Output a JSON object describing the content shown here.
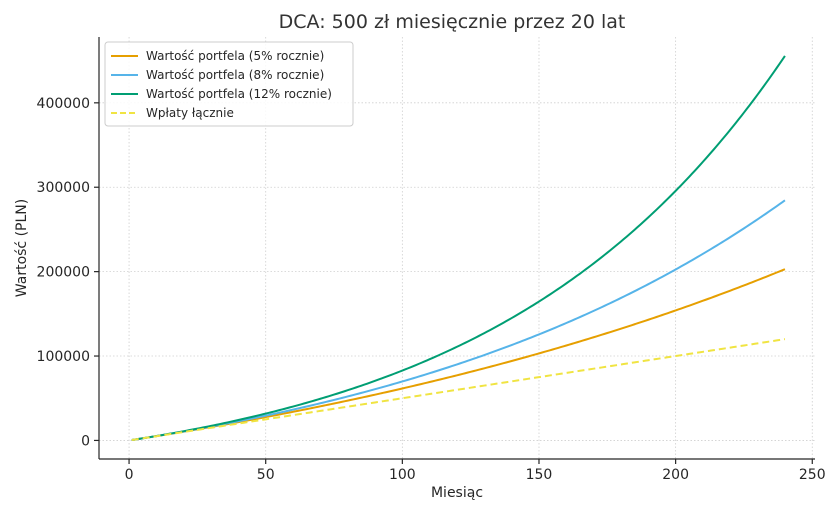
{
  "chart_data": {
    "type": "line",
    "title": "DCA: 500 zł miesięcznie przez 20 lat",
    "xlabel": "Miesiąc",
    "ylabel": "Wartość (PLN)",
    "xlim": [
      -11,
      251
    ],
    "ylim": [
      -22000,
      478000
    ],
    "xticks": [
      0,
      50,
      100,
      150,
      200,
      250
    ],
    "yticks": [
      0,
      100000,
      200000,
      300000,
      400000
    ],
    "xtick_labels": [
      "0",
      "50",
      "100",
      "150",
      "200",
      "250"
    ],
    "ytick_labels": [
      "0",
      "100000",
      "200000",
      "300000",
      "400000"
    ],
    "grid": true,
    "legend_position": "top-left",
    "monthly_contribution": 500,
    "months": [
      1,
      240
    ],
    "series": [
      {
        "name": "Wartość portfela (5% rocznie)",
        "annual_rate": 0.05,
        "color": "#E69F00",
        "style": "solid",
        "end_value": 202900
      },
      {
        "name": "Wartość portfela (8% rocznie)",
        "annual_rate": 0.08,
        "color": "#56B4E9",
        "style": "solid",
        "end_value": 284500
      },
      {
        "name": "Wartość portfela (12% rocznie)",
        "annual_rate": 0.12,
        "color": "#009E73",
        "style": "solid",
        "end_value": 455600
      },
      {
        "name": "Wpłaty łącznie",
        "annual_rate": 0,
        "color": "#F0E442",
        "style": "dashed",
        "end_value": 120000
      }
    ]
  }
}
